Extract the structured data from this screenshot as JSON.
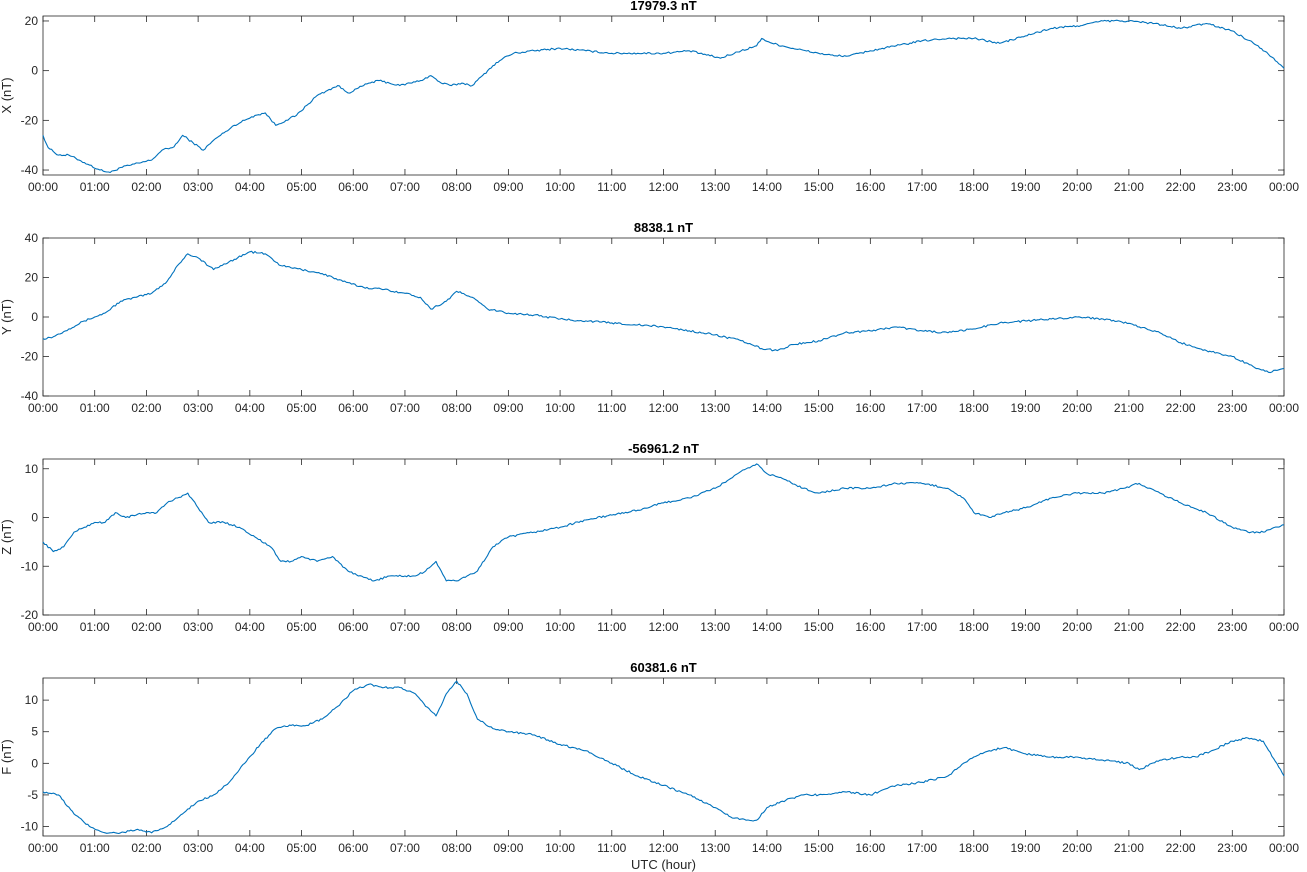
{
  "colors": {
    "line": "#0072BD",
    "axes": "#262626",
    "background": "#ffffff"
  },
  "x_tick_labels": [
    "00:00",
    "01:00",
    "02:00",
    "03:00",
    "04:00",
    "05:00",
    "06:00",
    "07:00",
    "08:00",
    "09:00",
    "10:00",
    "11:00",
    "12:00",
    "13:00",
    "14:00",
    "15:00",
    "16:00",
    "17:00",
    "18:00",
    "19:00",
    "20:00",
    "21:00",
    "22:00",
    "23:00",
    "00:00"
  ],
  "chart_data": [
    {
      "type": "line",
      "title": "17979.3 nT",
      "ylabel": "X (nT)",
      "xlabel": "",
      "xlim": [
        0,
        24
      ],
      "ylim": [
        -42,
        22
      ],
      "yticks": [
        -40,
        -20,
        0,
        20
      ],
      "grid": false,
      "x": [
        0,
        0.1,
        0.3,
        0.5,
        0.7,
        0.9,
        1.1,
        1.3,
        1.5,
        1.7,
        1.9,
        2.1,
        2.3,
        2.5,
        2.6,
        2.7,
        2.9,
        3.1,
        3.3,
        3.5,
        3.7,
        3.9,
        4.1,
        4.3,
        4.5,
        4.7,
        4.9,
        5.1,
        5.3,
        5.5,
        5.7,
        5.9,
        6.1,
        6.3,
        6.5,
        6.7,
        6.9,
        7.1,
        7.3,
        7.5,
        7.7,
        7.9,
        8.1,
        8.3,
        8.5,
        8.7,
        8.9,
        9.1,
        9.5,
        10,
        10.5,
        11,
        11.5,
        12,
        12.5,
        12.9,
        13.1,
        13.5,
        13.8,
        13.9,
        14.1,
        14.5,
        15,
        15.3,
        15.6,
        16,
        16.5,
        17,
        17.5,
        18,
        18.5,
        19,
        19.5,
        20,
        20.5,
        21,
        21.5,
        22,
        22.5,
        23,
        23.5,
        23.8,
        24
      ],
      "y": [
        -26,
        -31,
        -34,
        -34,
        -36,
        -38,
        -40,
        -41,
        -39,
        -38,
        -37,
        -36,
        -32,
        -31,
        -29,
        -26,
        -29,
        -32,
        -28,
        -25,
        -22,
        -20,
        -18,
        -17,
        -22,
        -20,
        -18,
        -14,
        -10,
        -8,
        -6,
        -9,
        -7,
        -5,
        -4,
        -5,
        -6,
        -5,
        -4,
        -2,
        -5,
        -6,
        -5,
        -6,
        -2,
        2,
        5,
        7,
        8,
        9,
        8,
        7,
        7,
        7,
        8,
        6,
        5,
        8,
        10,
        13,
        11,
        9,
        7,
        6,
        6,
        8,
        10,
        12,
        13,
        13,
        11,
        14,
        17,
        18,
        20,
        20,
        19,
        17,
        19,
        16,
        10,
        5,
        1
      ],
      "series": [
        {
          "name": ""
        }
      ]
    },
    {
      "type": "line",
      "title": "8838.1 nT",
      "ylabel": "Y (nT)",
      "xlabel": "",
      "xlim": [
        0,
        24
      ],
      "ylim": [
        -40,
        40
      ],
      "yticks": [
        -40,
        -20,
        0,
        20,
        40
      ],
      "grid": false,
      "x": [
        0,
        0.2,
        0.5,
        0.8,
        1.0,
        1.2,
        1.5,
        1.8,
        2.1,
        2.4,
        2.6,
        2.8,
        3.0,
        3.3,
        3.6,
        4.0,
        4.3,
        4.6,
        5.0,
        5.4,
        5.8,
        6.2,
        6.6,
        7.0,
        7.3,
        7.5,
        7.8,
        8.0,
        8.3,
        8.6,
        9.0,
        9.5,
        10,
        10.5,
        11,
        11.5,
        12,
        12.5,
        13,
        13.5,
        13.9,
        14.2,
        14.5,
        15,
        15.5,
        16,
        16.5,
        17,
        17.5,
        18,
        18.5,
        19,
        19.5,
        20,
        20.5,
        20.8,
        21.2,
        21.6,
        22,
        22.5,
        23,
        23.4,
        23.7,
        24
      ],
      "y": [
        -11,
        -10,
        -6,
        -2,
        0,
        2,
        8,
        10,
        12,
        18,
        26,
        32,
        30,
        24,
        28,
        33,
        32,
        26,
        24,
        22,
        18,
        15,
        14,
        12,
        10,
        4,
        8,
        13,
        10,
        4,
        2,
        1,
        -1,
        -2,
        -3,
        -4,
        -5,
        -7,
        -9,
        -12,
        -16,
        -17,
        -14,
        -12,
        -8,
        -7,
        -5,
        -7,
        -8,
        -6,
        -3,
        -2,
        -1,
        0,
        -1,
        -2,
        -5,
        -8,
        -13,
        -17,
        -20,
        -25,
        -28,
        -26
      ],
      "series": [
        {
          "name": ""
        }
      ]
    },
    {
      "type": "line",
      "title": "-56961.2 nT",
      "ylabel": "Z (nT)",
      "xlabel": "",
      "xlim": [
        0,
        24
      ],
      "ylim": [
        -20,
        12
      ],
      "yticks": [
        -20,
        -10,
        0,
        10
      ],
      "grid": false,
      "x": [
        0,
        0.2,
        0.4,
        0.6,
        0.8,
        1.0,
        1.2,
        1.4,
        1.6,
        1.8,
        2.0,
        2.2,
        2.4,
        2.6,
        2.8,
        3.0,
        3.2,
        3.5,
        3.8,
        4.1,
        4.4,
        4.6,
        4.8,
        5.0,
        5.3,
        5.6,
        5.9,
        6.1,
        6.4,
        6.7,
        7.0,
        7.2,
        7.4,
        7.6,
        7.8,
        8.0,
        8.2,
        8.4,
        8.7,
        9.0,
        9.5,
        10,
        10.5,
        11,
        11.5,
        12,
        12.5,
        13,
        13.3,
        13.6,
        13.8,
        14.0,
        14.3,
        14.7,
        15,
        15.5,
        16,
        16.5,
        17,
        17.5,
        17.8,
        18.0,
        18.3,
        18.6,
        19,
        19.5,
        20,
        20.5,
        20.9,
        21.2,
        21.6,
        22,
        22.5,
        23,
        23.3,
        23.6,
        24
      ],
      "y": [
        -5,
        -7,
        -6,
        -3,
        -2,
        -1,
        -1,
        1,
        0,
        0.5,
        1,
        1,
        3,
        4,
        5,
        2,
        -1,
        -1,
        -2,
        -4,
        -6,
        -9,
        -9,
        -8,
        -9,
        -8,
        -11,
        -12,
        -13,
        -12,
        -12,
        -12,
        -11,
        -9,
        -13,
        -13,
        -12,
        -11,
        -6,
        -4,
        -3,
        -2,
        -0.5,
        0.5,
        1.5,
        3,
        4,
        6,
        8,
        10,
        11,
        9,
        8,
        6,
        5,
        6,
        6,
        7,
        7,
        6,
        4,
        1,
        0,
        1,
        2,
        4,
        5,
        5,
        6,
        7,
        5,
        3,
        1,
        -2,
        -3,
        -3,
        -1.5
      ],
      "series": [
        {
          "name": ""
        }
      ]
    },
    {
      "type": "line",
      "title": "60381.6 nT",
      "ylabel": "F (nT)",
      "xlabel": "UTC (hour)",
      "xlim": [
        0,
        24
      ],
      "ylim": [
        -11.5,
        13.5
      ],
      "yticks": [
        -10,
        -5,
        0,
        5,
        10
      ],
      "grid": false,
      "x": [
        0,
        0.3,
        0.6,
        0.9,
        1.2,
        1.5,
        1.8,
        2.1,
        2.4,
        2.7,
        3.0,
        3.3,
        3.6,
        3.9,
        4.2,
        4.5,
        4.8,
        5.1,
        5.4,
        5.7,
        6.0,
        6.3,
        6.6,
        6.9,
        7.2,
        7.4,
        7.6,
        7.8,
        8.0,
        8.2,
        8.4,
        8.7,
        9.0,
        9.5,
        10,
        10.5,
        11,
        11.5,
        12,
        12.5,
        13,
        13.3,
        13.6,
        13.8,
        14.0,
        14.3,
        14.7,
        15,
        15.5,
        16,
        16.5,
        17,
        17.5,
        17.8,
        18.0,
        18.3,
        18.6,
        19,
        19.5,
        20,
        20.5,
        21,
        21.2,
        21.6,
        22,
        22.3,
        22.6,
        23,
        23.3,
        23.6,
        24
      ],
      "y": [
        -4.5,
        -5,
        -8,
        -10,
        -11,
        -11,
        -10.5,
        -11,
        -10,
        -8,
        -6,
        -5,
        -3,
        0,
        3,
        5.5,
        6,
        6,
        7,
        9,
        11.5,
        12.5,
        12,
        12,
        11,
        9,
        7.5,
        11,
        13,
        11,
        7,
        5.5,
        5,
        4.5,
        3,
        2,
        0,
        -2,
        -3.5,
        -5,
        -7,
        -8.5,
        -9,
        -9,
        -7,
        -6,
        -5,
        -5,
        -4.5,
        -5,
        -3.5,
        -3,
        -2,
        0,
        1,
        2,
        2.5,
        1.5,
        1,
        1,
        0.5,
        0,
        -1,
        0.5,
        1,
        1,
        2,
        3.5,
        4,
        3.5,
        -2
      ],
      "series": [
        {
          "name": ""
        }
      ]
    }
  ]
}
